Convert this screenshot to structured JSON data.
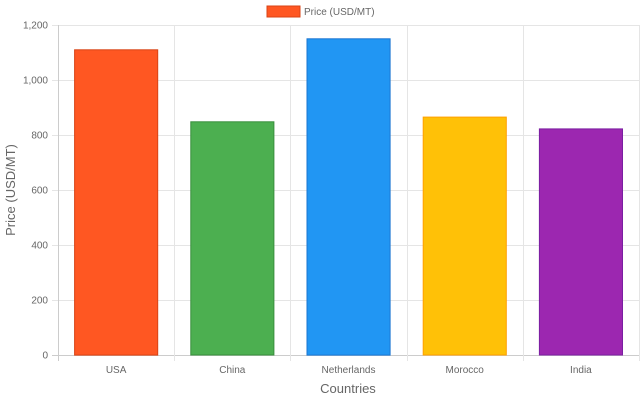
{
  "chart_data": {
    "type": "bar",
    "categories": [
      "USA",
      "China",
      "Netherlands",
      "Morocco",
      "India"
    ],
    "series": [
      {
        "name": "Price (USD/MT)",
        "values": [
          1110,
          848,
          1150,
          865,
          822
        ],
        "colors": [
          "#FF5722",
          "#4CAF50",
          "#2196F3",
          "#FFC107",
          "#9C27B0"
        ],
        "border_colors": [
          "#D84315",
          "#388E3C",
          "#1976D2",
          "#FFA000",
          "#7B1FA2"
        ]
      }
    ],
    "xlabel": "Countries",
    "ylabel": "Price (USD/MT)",
    "ylim": [
      0,
      1200
    ],
    "yticks": [
      0,
      200,
      400,
      600,
      800,
      1000,
      1200
    ],
    "ytick_labels": [
      "0",
      "200",
      "400",
      "600",
      "800",
      "1,000",
      "1,200"
    ],
    "grid": true,
    "legend": {
      "position": "top",
      "label": "Price (USD/MT)",
      "swatch_color": "#FF5722",
      "swatch_border": "#D84315"
    }
  }
}
